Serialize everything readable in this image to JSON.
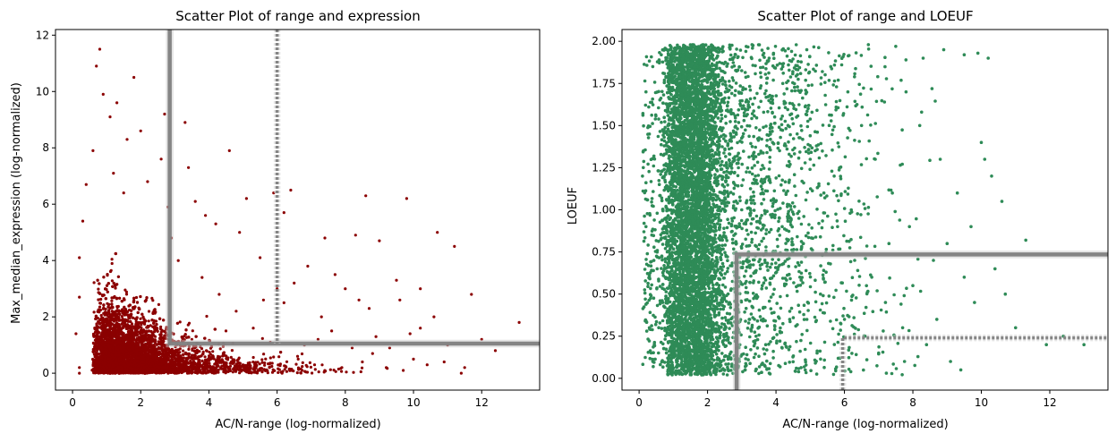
{
  "chart_data": [
    {
      "type": "scatter",
      "title": "Scatter Plot of range and expression",
      "xlabel": "AC/N-range (log-normalized)",
      "ylabel": "Max_median_expression (log-normalized)",
      "xlim": [
        -0.5,
        13.7
      ],
      "ylim": [
        -0.6,
        12.2
      ],
      "xticks": [
        0,
        2,
        4,
        6,
        8,
        10,
        12
      ],
      "yticks": [
        0,
        2,
        4,
        6,
        8,
        10,
        12
      ],
      "point_color": "#8b0000",
      "grid": false,
      "threshold_lines": [
        {
          "style": "solid",
          "x": 2.85,
          "y": 1.05
        },
        {
          "style": "dashed",
          "x": 6.0
        }
      ],
      "points": [
        [
          0.8,
          11.5
        ],
        [
          0.7,
          10.9
        ],
        [
          1.8,
          10.5
        ],
        [
          0.9,
          9.9
        ],
        [
          1.3,
          9.6
        ],
        [
          2.7,
          9.2
        ],
        [
          3.3,
          8.9
        ],
        [
          4.6,
          7.9
        ],
        [
          6.4,
          6.5
        ],
        [
          8.6,
          6.3
        ],
        [
          9.8,
          6.2
        ],
        [
          5.9,
          6.4
        ],
        [
          5.1,
          6.2
        ],
        [
          6.2,
          5.7
        ],
        [
          7.4,
          4.8
        ],
        [
          8.3,
          4.9
        ],
        [
          10.7,
          5.0
        ],
        [
          11.2,
          4.5
        ],
        [
          9.0,
          4.7
        ],
        [
          7.7,
          3.5
        ],
        [
          8.0,
          3.0
        ],
        [
          9.5,
          3.3
        ],
        [
          10.2,
          3.0
        ],
        [
          11.7,
          2.8
        ],
        [
          10.6,
          2.0
        ],
        [
          9.9,
          1.4
        ],
        [
          13.1,
          1.8
        ],
        [
          12.4,
          0.8
        ],
        [
          11.5,
          0.2
        ],
        [
          11.4,
          0.0
        ],
        [
          10.9,
          0.4
        ],
        [
          10.0,
          0.5
        ],
        [
          9.7,
          0.1
        ],
        [
          8.7,
          2.3
        ],
        [
          8.9,
          1.3
        ],
        [
          7.3,
          2.0
        ],
        [
          7.6,
          1.5
        ],
        [
          8.2,
          0.9
        ],
        [
          6.9,
          3.8
        ],
        [
          6.5,
          3.2
        ],
        [
          6.2,
          2.5
        ],
        [
          5.5,
          4.1
        ],
        [
          4.2,
          5.3
        ],
        [
          4.9,
          5.0
        ],
        [
          3.6,
          6.1
        ],
        [
          3.9,
          5.6
        ],
        [
          3.4,
          7.3
        ],
        [
          2.6,
          7.6
        ],
        [
          2.0,
          8.6
        ],
        [
          1.6,
          8.3
        ],
        [
          1.1,
          9.1
        ],
        [
          0.6,
          7.9
        ],
        [
          0.4,
          6.7
        ],
        [
          0.3,
          5.4
        ],
        [
          0.2,
          4.1
        ],
        [
          0.2,
          2.7
        ],
        [
          0.1,
          1.4
        ],
        [
          0.2,
          0.2
        ],
        [
          0.2,
          0.0
        ],
        [
          1.2,
          7.1
        ],
        [
          1.5,
          6.4
        ],
        [
          2.2,
          6.8
        ],
        [
          2.8,
          5.9
        ],
        [
          2.9,
          4.8
        ],
        [
          3.1,
          4.0
        ],
        [
          3.8,
          3.4
        ],
        [
          4.3,
          2.8
        ],
        [
          4.8,
          2.2
        ],
        [
          5.3,
          1.6
        ],
        [
          5.8,
          1.1
        ],
        [
          6.6,
          0.6
        ],
        [
          7.1,
          0.3
        ],
        [
          7.9,
          0.2
        ],
        [
          8.5,
          0.4
        ],
        [
          9.2,
          0.2
        ],
        [
          5.0,
          0.3
        ],
        [
          4.0,
          0.5
        ],
        [
          3.5,
          1.2
        ],
        [
          4.5,
          1.5
        ],
        [
          5.6,
          2.6
        ],
        [
          6.0,
          3.0
        ],
        [
          6.8,
          1.0
        ],
        [
          7.2,
          1.2
        ],
        [
          8.8,
          0.7
        ],
        [
          9.3,
          0.9
        ],
        [
          10.4,
          0.3
        ],
        [
          12.0,
          1.2
        ],
        [
          11.0,
          1.0
        ],
        [
          10.2,
          1.6
        ],
        [
          9.6,
          2.6
        ],
        [
          8.4,
          2.6
        ]
      ]
    },
    {
      "type": "scatter",
      "title": "Scatter Plot of range and LOEUF",
      "xlabel": "AC/N-range (log-normalized)",
      "ylabel": "LOEUF",
      "xlim": [
        -0.5,
        13.7
      ],
      "ylim": [
        -0.07,
        2.07
      ],
      "xticks": [
        0,
        2,
        4,
        6,
        8,
        10,
        12
      ],
      "yticks": [
        0.0,
        0.25,
        0.5,
        0.75,
        1.0,
        1.25,
        1.5,
        1.75,
        2.0
      ],
      "ytick_labels": [
        "0.00",
        "0.25",
        "0.50",
        "0.75",
        "1.00",
        "1.25",
        "1.50",
        "1.75",
        "2.00"
      ],
      "point_color": "#2e8b57",
      "grid": false,
      "threshold_lines": [
        {
          "style": "solid",
          "x": 2.85,
          "y": 0.735
        },
        {
          "style": "dashed",
          "x": 5.95,
          "y": 0.24
        }
      ],
      "points": [
        [
          10.2,
          1.9
        ],
        [
          9.9,
          1.93
        ],
        [
          9.5,
          1.92
        ],
        [
          8.9,
          1.95
        ],
        [
          8.3,
          1.9
        ],
        [
          7.5,
          1.97
        ],
        [
          6.7,
          1.98
        ],
        [
          10.0,
          1.4
        ],
        [
          10.1,
          1.3
        ],
        [
          10.3,
          1.2
        ],
        [
          10.6,
          1.05
        ],
        [
          11.3,
          0.82
        ],
        [
          10.7,
          0.5
        ],
        [
          11.0,
          0.3
        ],
        [
          11.9,
          0.2
        ],
        [
          12.4,
          0.25
        ],
        [
          13.0,
          0.2
        ],
        [
          9.4,
          0.05
        ],
        [
          9.1,
          0.1
        ],
        [
          8.4,
          0.2
        ],
        [
          7.7,
          0.3
        ],
        [
          7.2,
          0.45
        ],
        [
          6.8,
          0.6
        ],
        [
          6.3,
          0.7
        ],
        [
          5.8,
          0.9
        ],
        [
          5.4,
          1.1
        ],
        [
          5.0,
          1.3
        ],
        [
          4.6,
          1.55
        ],
        [
          4.2,
          1.75
        ],
        [
          3.8,
          1.9
        ],
        [
          3.3,
          1.98
        ],
        [
          9.7,
          0.9
        ],
        [
          9.3,
          1.1
        ],
        [
          8.8,
          1.3
        ],
        [
          8.2,
          1.5
        ],
        [
          7.8,
          1.7
        ],
        [
          8.6,
          0.7
        ],
        [
          7.9,
          0.9
        ],
        [
          7.4,
          1.1
        ],
        [
          6.9,
          1.3
        ],
        [
          6.5,
          1.5
        ],
        [
          6.1,
          1.7
        ],
        [
          5.6,
          1.85
        ],
        [
          4.9,
          1.95
        ],
        [
          9.8,
          0.45
        ],
        [
          10.4,
          0.65
        ],
        [
          8.0,
          0.55
        ],
        [
          6.6,
          0.25
        ],
        [
          5.2,
          0.15
        ],
        [
          4.4,
          0.35
        ],
        [
          3.6,
          0.55
        ],
        [
          3.2,
          0.75
        ],
        [
          3.0,
          1.0
        ],
        [
          3.4,
          1.2
        ],
        [
          3.9,
          1.4
        ],
        [
          4.3,
          1.1
        ],
        [
          4.8,
          0.8
        ],
        [
          5.3,
          0.5
        ],
        [
          6.0,
          0.35
        ],
        [
          7.0,
          0.15
        ],
        [
          8.7,
          0.35
        ],
        [
          9.5,
          0.6
        ],
        [
          9.0,
          0.8
        ],
        [
          7.3,
          0.8
        ],
        [
          6.2,
          1.0
        ],
        [
          5.7,
          1.2
        ],
        [
          4.1,
          0.95
        ],
        [
          4.7,
          0.6
        ],
        [
          3.7,
          0.2
        ],
        [
          3.1,
          0.05
        ],
        [
          0.3,
          0.6
        ],
        [
          0.2,
          0.9
        ],
        [
          0.1,
          1.2
        ],
        [
          0.3,
          1.45
        ],
        [
          0.2,
          1.7
        ],
        [
          0.4,
          1.85
        ],
        [
          0.3,
          0.3
        ],
        [
          0.4,
          0.1
        ]
      ]
    }
  ]
}
